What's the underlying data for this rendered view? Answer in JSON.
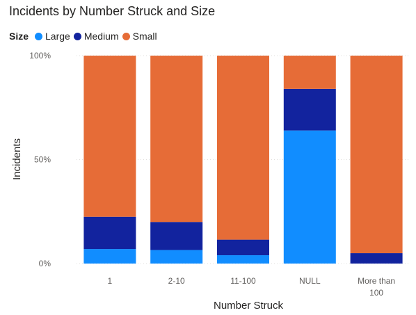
{
  "chart_data": {
    "type": "bar",
    "stacked": "percent",
    "title": "Incidents by Number Struck and Size",
    "legend_title": "Size",
    "legend_position": "top-left",
    "xlabel": "Number Struck",
    "ylabel": "Incidents",
    "ylim": [
      0,
      100
    ],
    "yticks": [
      {
        "value": 0,
        "label": "0%"
      },
      {
        "value": 50,
        "label": "50%"
      },
      {
        "value": 100,
        "label": "100%"
      }
    ],
    "grid": true,
    "categories": [
      "1",
      "2-10",
      "11-100",
      "NULL",
      "More than 100"
    ],
    "category_lines": [
      [
        "1"
      ],
      [
        "2-10"
      ],
      [
        "11-100"
      ],
      [
        "NULL"
      ],
      [
        "More than",
        "100"
      ]
    ],
    "series": [
      {
        "name": "Large",
        "color": "#118DFF",
        "values": [
          7,
          6.5,
          4,
          64,
          0
        ]
      },
      {
        "name": "Medium",
        "color": "#12239E",
        "values": [
          15.5,
          13.5,
          7.5,
          20,
          5
        ]
      },
      {
        "name": "Small",
        "color": "#E66C37",
        "values": [
          77.5,
          80,
          88.5,
          16,
          95
        ]
      }
    ]
  }
}
